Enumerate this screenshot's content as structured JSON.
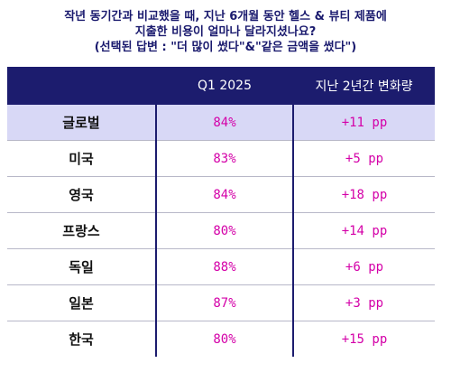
{
  "title": {
    "line1": "작년 동기간과 비교했을 때, 지난 6개월 동안 헬스 & 뷰티 제품에",
    "line2": "지출한 비용이 얼마나 달라지셨나요?",
    "line3": "(선택된 답변 : \"더 많이 썼다\"&\"같은 금액을 썼다\")"
  },
  "chart_data": {
    "type": "table",
    "columns": [
      "",
      "Q1 2025",
      "지난 2년간 변화량"
    ],
    "rows": [
      {
        "region": "글로벌",
        "q1_2025": "84%",
        "change": "+11 pp",
        "highlight": true
      },
      {
        "region": "미국",
        "q1_2025": "83%",
        "change": "+5 pp"
      },
      {
        "region": "영국",
        "q1_2025": "84%",
        "change": "+18 pp"
      },
      {
        "region": "프랑스",
        "q1_2025": "80%",
        "change": "+14 pp"
      },
      {
        "region": "독일",
        "q1_2025": "88%",
        "change": "+6 pp"
      },
      {
        "region": "일본",
        "q1_2025": "87%",
        "change": "+3 pp"
      },
      {
        "region": "한국",
        "q1_2025": "80%",
        "change": "+15 pp"
      }
    ]
  },
  "colors": {
    "header_bg": "#1c1c6e",
    "highlight_bg": "#d8d8f6",
    "value_text": "#d400a8",
    "title_text": "#1a1a6e"
  }
}
